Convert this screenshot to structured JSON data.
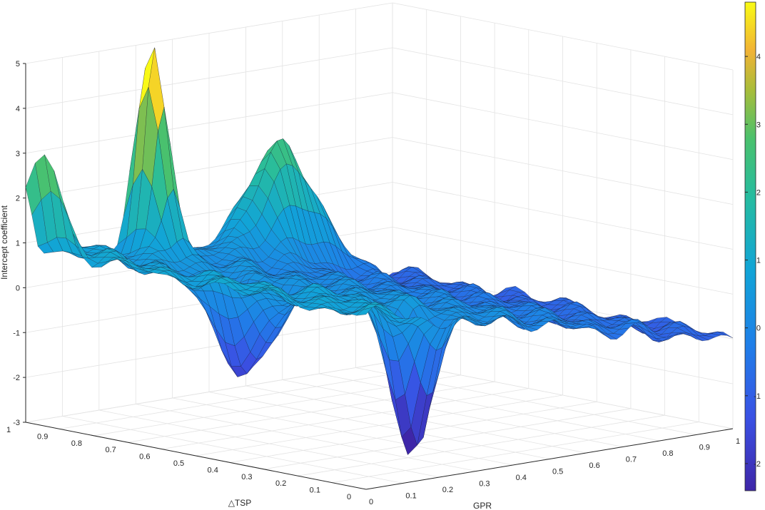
{
  "chart_data": {
    "type": "surface",
    "title": "",
    "xlabel": "GPR",
    "ylabel": "△TSP",
    "zlabel": "Intercept coefficient",
    "xlim": [
      0,
      1
    ],
    "ylim": [
      0,
      1
    ],
    "zlim": [
      -3,
      5
    ],
    "x_ticks": [
      "0",
      "0.1",
      "0.2",
      "0.3",
      "0.4",
      "0.5",
      "0.6",
      "0.7",
      "0.8",
      "0.9",
      "1"
    ],
    "y_ticks": [
      "0",
      "0.1",
      "0.2",
      "0.3",
      "0.4",
      "0.5",
      "0.6",
      "0.7",
      "0.8",
      "0.9",
      "1"
    ],
    "z_ticks": [
      "-3",
      "-2",
      "-1",
      "0",
      "1",
      "2",
      "3",
      "4",
      "5"
    ],
    "colormap": "parula",
    "colorbar": {
      "range": [
        -2.4,
        4.8
      ],
      "ticks": [
        "4",
        "3",
        "2",
        "1",
        "0",
        "-1",
        "-2"
      ]
    },
    "grid": true,
    "surface_profile": {
      "base_level_by_gpr": [
        {
          "gpr": 0.0,
          "z": 0.9
        },
        {
          "gpr": 0.2,
          "z": 0.6
        },
        {
          "gpr": 0.4,
          "z": 0.2
        },
        {
          "gpr": 0.6,
          "z": -0.2
        },
        {
          "gpr": 0.8,
          "z": -0.6
        },
        {
          "gpr": 1.0,
          "z": -1.0
        }
      ],
      "peaks": [
        {
          "gpr": 0.0,
          "tsp": 0.95,
          "z": 3.2
        },
        {
          "gpr": 0.3,
          "tsp": 0.95,
          "z": 5.0
        },
        {
          "gpr": 0.65,
          "tsp": 0.95,
          "z": 2.3
        }
      ],
      "troughs": [
        {
          "gpr": 0.22,
          "tsp": 0.1,
          "z": -2.9
        },
        {
          "gpr": 0.22,
          "tsp": 0.6,
          "z": -1.5
        }
      ]
    }
  }
}
